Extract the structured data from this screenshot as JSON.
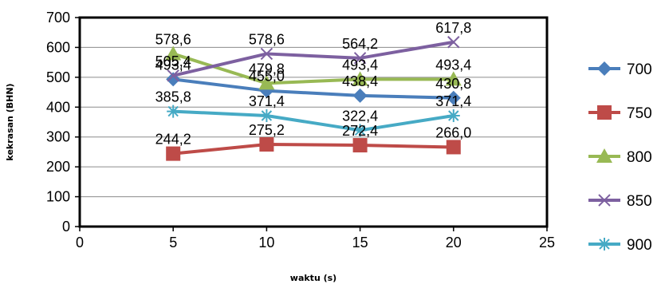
{
  "chart_data": {
    "type": "line",
    "title": "",
    "xlabel": "waktu (s)",
    "ylabel": "kekrasan (BHN)",
    "xlim": [
      0,
      25
    ],
    "ylim": [
      0,
      700
    ],
    "xticks": [
      0,
      5,
      10,
      15,
      20,
      25
    ],
    "yticks": [
      0,
      100,
      200,
      300,
      400,
      500,
      600,
      700
    ],
    "grid": "horizontal",
    "legend": "right",
    "x": [
      5,
      10,
      15,
      20
    ],
    "series": [
      {
        "name": "700",
        "color": "#4a7ebb",
        "marker": "diamond",
        "values": [
          493.4,
          455.0,
          438.4,
          430.8
        ],
        "labels": [
          "493,4",
          "455,0",
          "438,4",
          "430,8"
        ]
      },
      {
        "name": "750",
        "color": "#be4b48",
        "marker": "square",
        "values": [
          244.2,
          275.2,
          272.4,
          266.0
        ],
        "labels": [
          "244,2",
          "275,2",
          "272,4",
          "266,0"
        ]
      },
      {
        "name": "800",
        "color": "#98b954",
        "marker": "triangle",
        "values": [
          578.6,
          479.8,
          493.4,
          493.4
        ],
        "labels": [
          "578,6",
          "479,8",
          "493,4",
          "493,4"
        ]
      },
      {
        "name": "850",
        "color": "#7d60a0",
        "marker": "x",
        "values": [
          505.4,
          578.6,
          564.2,
          617.8
        ],
        "labels": [
          "505,4",
          "578,6",
          "564,2",
          "617,8"
        ]
      },
      {
        "name": "900",
        "color": "#46aac5",
        "marker": "star",
        "values": [
          385.8,
          371.4,
          322.4,
          371.4
        ],
        "labels": [
          "385,8",
          "371,4",
          "322,4",
          "371,4"
        ]
      }
    ]
  }
}
